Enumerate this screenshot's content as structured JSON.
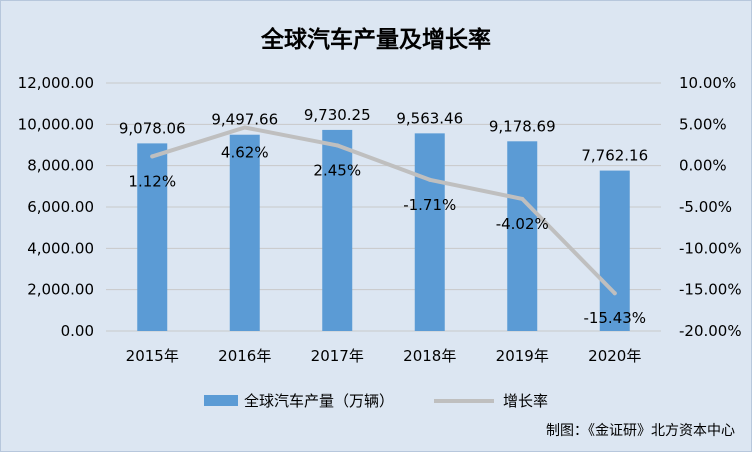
{
  "chart_data": {
    "type": "bar",
    "title": "全球汽车产量及增长率",
    "categories": [
      "2015年",
      "2016年",
      "2017年",
      "2018年",
      "2019年",
      "2020年"
    ],
    "series": [
      {
        "name": "全球汽车产量（万辆）",
        "kind": "bar",
        "axis": "left",
        "color": "#5b9bd5",
        "values": [
          9078.06,
          9497.66,
          9730.25,
          9563.46,
          9178.69,
          7762.16
        ],
        "labels": [
          "9,078.06",
          "9,497.66",
          "9,730.25",
          "9,563.46",
          "9,178.69",
          "7,762.16"
        ]
      },
      {
        "name": "增长率",
        "kind": "line",
        "axis": "right",
        "color": "#bfbfbf",
        "values": [
          1.12,
          4.62,
          2.45,
          -1.71,
          -4.02,
          -15.43
        ],
        "labels": [
          "1.12%",
          "4.62%",
          "2.45%",
          "-1.71%",
          "-4.02%",
          "-15.43%"
        ]
      }
    ],
    "y_left": {
      "min": 0,
      "max": 12000,
      "ticks": [
        0,
        2000,
        4000,
        6000,
        8000,
        10000,
        12000
      ],
      "tick_labels": [
        "0.00",
        "2,000.00",
        "4,000.00",
        "6,000.00",
        "8,000.00",
        "10,000.00",
        "12,000.00"
      ]
    },
    "y_right": {
      "min": -20,
      "max": 10,
      "ticks": [
        -20,
        -15,
        -10,
        -5,
        0,
        5,
        10
      ],
      "tick_labels": [
        "-20.00%",
        "-15.00%",
        "-10.00%",
        "-5.00%",
        "0.00%",
        "5.00%",
        "10.00%"
      ]
    },
    "grid": true,
    "legend": "bottom"
  },
  "source_note": "制图：《金证研》北方资本中心"
}
